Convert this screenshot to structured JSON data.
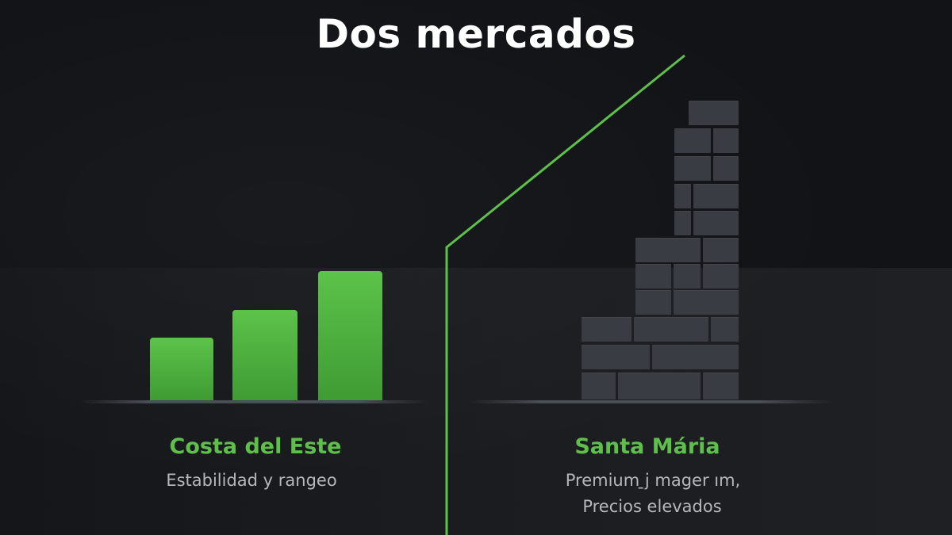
{
  "title": "Dos mercados",
  "left_market": {
    "name": "Costa del Este",
    "subtitle": "Estabilidad y rangeo",
    "bar_levels": [
      0.47,
      0.68,
      0.97
    ]
  },
  "right_market": {
    "name": "Santa Mária",
    "subtitle_line1": "Premium ̱j mager ım,",
    "subtitle_line2": "Precios elevados"
  },
  "colors": {
    "accent_green": "#5ec04b",
    "brick_gray": "#393c42",
    "background": "#111317"
  }
}
